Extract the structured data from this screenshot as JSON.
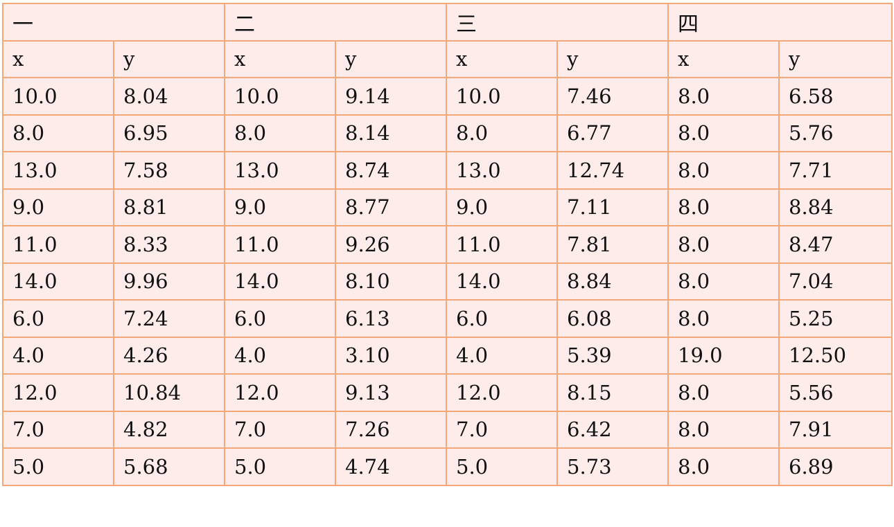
{
  "table": {
    "groups": [
      "一",
      "二",
      "三",
      "四"
    ],
    "subheaders": [
      "x",
      "y",
      "x",
      "y",
      "x",
      "y",
      "x",
      "y"
    ],
    "rows": [
      [
        "10.0",
        "8.04",
        "10.0",
        "9.14",
        "10.0",
        "7.46",
        "8.0",
        "6.58"
      ],
      [
        "8.0",
        "6.95",
        "8.0",
        "8.14",
        "8.0",
        "6.77",
        "8.0",
        "5.76"
      ],
      [
        "13.0",
        "7.58",
        "13.0",
        "8.74",
        "13.0",
        "12.74",
        "8.0",
        "7.71"
      ],
      [
        "9.0",
        "8.81",
        "9.0",
        "8.77",
        "9.0",
        "7.11",
        "8.0",
        "8.84"
      ],
      [
        "11.0",
        "8.33",
        "11.0",
        "9.26",
        "11.0",
        "7.81",
        "8.0",
        "8.47"
      ],
      [
        "14.0",
        "9.96",
        "14.0",
        "8.10",
        "14.0",
        "8.84",
        "8.0",
        "7.04"
      ],
      [
        "6.0",
        "7.24",
        "6.0",
        "6.13",
        "6.0",
        "6.08",
        "8.0",
        "5.25"
      ],
      [
        "4.0",
        "4.26",
        "4.0",
        "3.10",
        "4.0",
        "5.39",
        "19.0",
        "12.50"
      ],
      [
        "12.0",
        "10.84",
        "12.0",
        "9.13",
        "12.0",
        "8.15",
        "8.0",
        "5.56"
      ],
      [
        "7.0",
        "4.82",
        "7.0",
        "7.26",
        "7.0",
        "6.42",
        "8.0",
        "7.91"
      ],
      [
        "5.0",
        "5.68",
        "5.0",
        "4.74",
        "5.0",
        "5.73",
        "8.0",
        "6.89"
      ]
    ]
  }
}
